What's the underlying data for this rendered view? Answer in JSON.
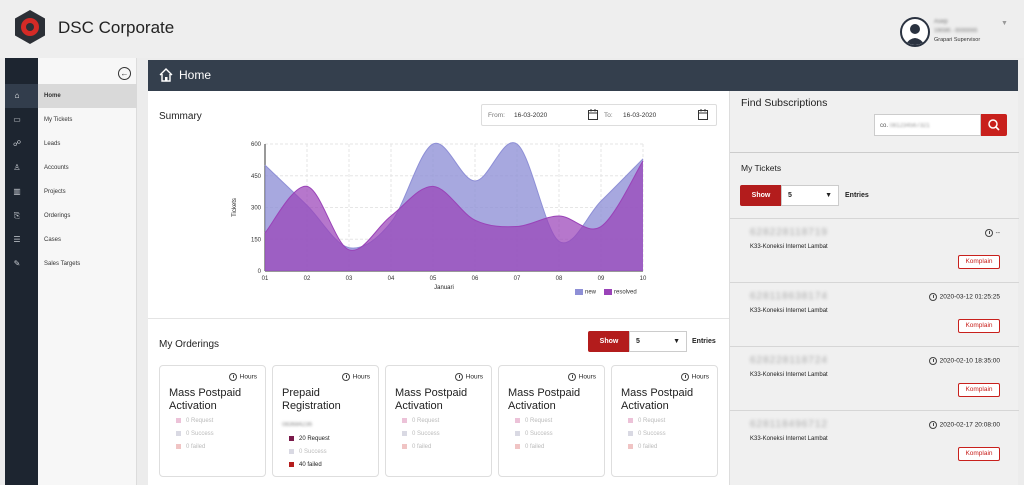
{
  "app": {
    "title": "DSC Corporate"
  },
  "user": {
    "name": "Asep",
    "id": "196585 - 00000065",
    "role": "Grapari Supervisor"
  },
  "sidebar": {
    "items": [
      {
        "label": "Home",
        "icon": "home-icon",
        "active": true
      },
      {
        "label": "My Tickets",
        "icon": "ticket-icon"
      },
      {
        "label": "Leads",
        "icon": "leads-icon"
      },
      {
        "label": "Accounts",
        "icon": "user-icon"
      },
      {
        "label": "Projects",
        "icon": "projects-icon"
      },
      {
        "label": "Orderings",
        "icon": "orderings-icon"
      },
      {
        "label": "Cases",
        "icon": "cases-icon"
      },
      {
        "label": "Sales Targets",
        "icon": "targets-icon"
      }
    ]
  },
  "header": {
    "title": "Home"
  },
  "summary": {
    "title": "Summary",
    "from_label": "From:",
    "from_value": "16-03-2020",
    "to_label": "To:",
    "to_value": "16-03-2020"
  },
  "chart_data": {
    "type": "area",
    "x": [
      "01",
      "02",
      "03",
      "04",
      "05",
      "06",
      "07",
      "08",
      "09",
      "10"
    ],
    "series": [
      {
        "name": "new",
        "values": [
          500,
          310,
          110,
          230,
          600,
          425,
          600,
          140,
          330,
          530
        ],
        "color": "#8e8fd6"
      },
      {
        "name": "resolved",
        "values": [
          180,
          400,
          100,
          260,
          400,
          240,
          210,
          260,
          210,
          520
        ],
        "color": "#9a43b8"
      }
    ],
    "xlabel": "Januari",
    "ylabel": "Tickets",
    "yticks": [
      0,
      150,
      300,
      450,
      600
    ],
    "ylim": [
      0,
      600
    ],
    "grid": true,
    "legend": "bottom-right"
  },
  "orderings": {
    "title": "My Orderings",
    "show_label": "Show",
    "entries_value": "5",
    "entries_label": "Entries",
    "cards": [
      {
        "hours_label": "Hours",
        "title": "Mass Postpaid Activation",
        "subtitle": "",
        "stats": [
          "0 Request",
          "0 Success",
          "0 failed"
        ]
      },
      {
        "hours_label": "Hours",
        "title": "Prepaid Registration",
        "subtitle": "083684236",
        "stats": [
          "20 Request",
          "0 Success",
          "40 failed"
        ]
      },
      {
        "hours_label": "Hours",
        "title": "Mass Postpaid Activation",
        "subtitle": "",
        "stats": [
          "0 Request",
          "0 Success",
          "0 failed"
        ]
      },
      {
        "hours_label": "Hours",
        "title": "Mass Postpaid Activation",
        "subtitle": "",
        "stats": [
          "0 Request",
          "0 Success",
          "0 failed"
        ]
      },
      {
        "hours_label": "Hours",
        "title": "Mass Postpaid Activation",
        "subtitle": "",
        "stats": [
          "0 Request",
          "0 Success",
          "0 failed"
        ]
      }
    ]
  },
  "find": {
    "title": "Find Subscriptions",
    "placeholder_prefix": "co.",
    "placeholder_number": "081234567321"
  },
  "tickets": {
    "title": "My Tickets",
    "show_label": "Show",
    "entries_value": "5",
    "entries_label": "Entries",
    "items": [
      {
        "number": "628228118719",
        "category": "K33-Koneksi Internet Lambat",
        "time": "--",
        "button": "Komplain"
      },
      {
        "number": "628118638174",
        "category": "K33-Koneksi Internet Lambat",
        "time": "2020-03-12 01:25:25",
        "button": "Komplain"
      },
      {
        "number": "628228118724",
        "category": "K33-Koneksi Internet Lambat",
        "time": "2020-02-10 18:35:00",
        "button": "Komplain"
      },
      {
        "number": "628118496712",
        "category": "K33-Koneksi Internet Lambat",
        "time": "2020-02-17 20:08:00",
        "button": "Komplain"
      }
    ]
  }
}
